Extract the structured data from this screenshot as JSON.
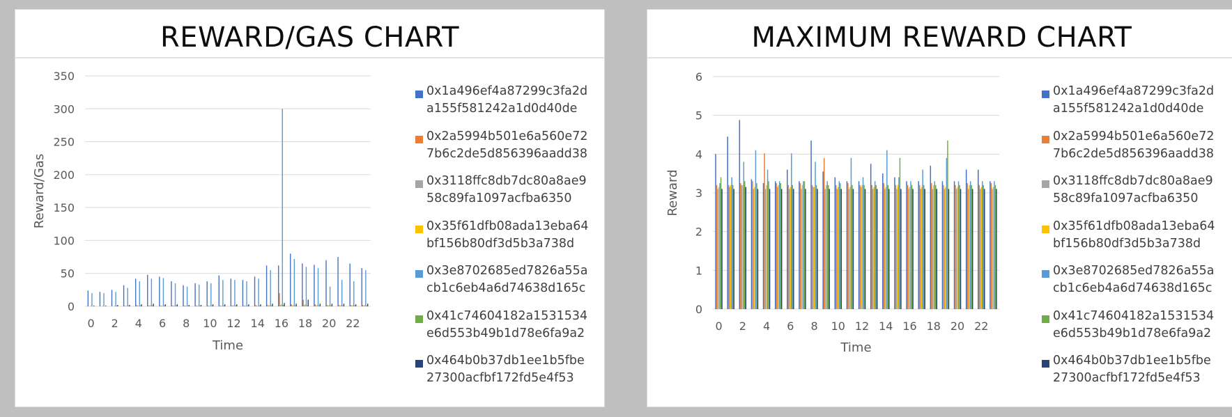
{
  "charts": [
    {
      "panel_title": "REWARD/GAS CHART",
      "xlabel": "Time",
      "ylabel": "Reward/Gas"
    },
    {
      "panel_title": "MAXIMUM REWARD CHART",
      "xlabel": "Time",
      "ylabel": "Reward"
    }
  ],
  "legend": [
    {
      "name": "0x1a496ef4a87299c3fa2da155f581242a1d0d40de",
      "color": "#4472c4"
    },
    {
      "name": "0x2a5994b501e6a560e727b6c2de5d856396aadd38",
      "color": "#ed7d31"
    },
    {
      "name": "0x3118ffc8db7dc80a8ae958c89fa1097acfba6350",
      "color": "#a5a5a5"
    },
    {
      "name": "0x35f61dfb08ada13eba64bf156b80df3d5b3a738d",
      "color": "#ffc000"
    },
    {
      "name": "0x3e8702685ed7826a55acb1c6eb4a6d74638d165c",
      "color": "#5b9bd5"
    },
    {
      "name": "0x41c74604182a1531534e6d553b49b1d78e6fa9a2",
      "color": "#70ad47"
    },
    {
      "name": "0x464b0b37db1ee1b5fbe27300acfbf172fd5e4f53",
      "color": "#264478"
    }
  ],
  "chart_data": [
    {
      "type": "bar",
      "title": "REWARD/GAS CHART",
      "xlabel": "Time",
      "ylabel": "Reward/Gas",
      "ylim": [
        0,
        350
      ],
      "yticks": [
        0,
        50,
        100,
        150,
        200,
        250,
        300,
        350
      ],
      "xticks": [
        0,
        2,
        4,
        6,
        8,
        10,
        12,
        14,
        16,
        18,
        20,
        22
      ],
      "x_range": [
        0,
        23
      ],
      "grid": true,
      "legend_position": "right",
      "series": [
        {
          "name": "0x1a496ef4a87299c3fa2da155f581242a1d0d40de",
          "values": [
            24,
            22,
            25,
            32,
            42,
            48,
            45,
            38,
            32,
            35,
            38,
            47,
            42,
            40,
            45,
            62,
            62,
            80,
            65,
            63,
            70,
            75,
            65,
            58
          ]
        },
        {
          "name": "0x2a5994b501e6a560e727b6c2de5d856396aadd38",
          "values": [
            0,
            0,
            0,
            1,
            2,
            1,
            1,
            1,
            1,
            1,
            1,
            1,
            1,
            1,
            2,
            2,
            20,
            3,
            10,
            3,
            2,
            2,
            2,
            2
          ]
        },
        {
          "name": "0x3118ffc8db7dc80a8ae958c89fa1097acfba6350",
          "values": [
            0,
            0,
            0,
            0,
            1,
            1,
            1,
            1,
            1,
            1,
            1,
            1,
            1,
            1,
            1,
            1,
            2,
            1,
            2,
            1,
            1,
            1,
            1,
            1
          ]
        },
        {
          "name": "0x35f61dfb08ada13eba64bf156b80df3d5b3a738d",
          "values": [
            1,
            1,
            1,
            1,
            1,
            2,
            1,
            1,
            1,
            1,
            1,
            1,
            2,
            1,
            1,
            2,
            3,
            2,
            3,
            2,
            2,
            2,
            2,
            2
          ]
        },
        {
          "name": "0x3e8702685ed7826a55acb1c6eb4a6d74638d165c",
          "values": [
            20,
            20,
            22,
            28,
            38,
            42,
            43,
            35,
            30,
            33,
            35,
            40,
            40,
            38,
            42,
            55,
            300,
            72,
            60,
            58,
            30,
            40,
            38,
            55
          ]
        },
        {
          "name": "0x41c74604182a1531534e6d553b49b1d78e6fa9a2",
          "values": [
            0,
            0,
            1,
            1,
            1,
            1,
            1,
            1,
            1,
            1,
            1,
            1,
            1,
            1,
            1,
            1,
            2,
            1,
            1,
            1,
            1,
            1,
            1,
            1
          ]
        },
        {
          "name": "0x464b0b37db1ee1b5fbe27300acfbf172fd5e4f53",
          "values": [
            1,
            1,
            2,
            2,
            3,
            4,
            3,
            3,
            2,
            2,
            3,
            3,
            3,
            3,
            3,
            4,
            5,
            4,
            10,
            4,
            4,
            4,
            3,
            4
          ]
        }
      ]
    },
    {
      "type": "bar",
      "title": "MAXIMUM REWARD CHART",
      "xlabel": "Time",
      "ylabel": "Reward",
      "ylim": [
        0,
        6
      ],
      "yticks": [
        0,
        1,
        2,
        3,
        4,
        5,
        6
      ],
      "xticks": [
        0,
        2,
        4,
        6,
        8,
        10,
        12,
        14,
        16,
        18,
        20,
        22
      ],
      "x_range": [
        0,
        23
      ],
      "grid": true,
      "legend_position": "right",
      "series": [
        {
          "name": "0x1a496ef4a87299c3fa2da155f581242a1d0d40de",
          "values": [
            4.0,
            4.45,
            4.88,
            3.35,
            3.25,
            3.3,
            3.6,
            3.3,
            4.35,
            3.55,
            3.4,
            3.3,
            3.3,
            3.75,
            3.5,
            3.4,
            3.3,
            3.3,
            3.7,
            3.3,
            3.3,
            3.6,
            3.6,
            3.3
          ]
        },
        {
          "name": "0x2a5994b501e6a560e727b6c2de5d856396aadd38",
          "values": [
            3.2,
            3.2,
            3.25,
            3.3,
            4.02,
            3.25,
            3.2,
            3.25,
            3.2,
            3.9,
            3.2,
            3.25,
            3.2,
            3.2,
            3.25,
            3.2,
            3.2,
            3.2,
            3.25,
            3.2,
            3.2,
            3.25,
            3.2,
            3.25
          ]
        },
        {
          "name": "0x3118ffc8db7dc80a8ae958c89fa1097acfba6350",
          "values": [
            3.1,
            3.15,
            3.2,
            3.1,
            3.1,
            3.15,
            3.1,
            3.1,
            3.15,
            3.1,
            3.1,
            3.1,
            3.15,
            3.1,
            3.1,
            3.1,
            3.1,
            3.1,
            3.1,
            3.1,
            3.1,
            3.1,
            3.1,
            3.1
          ]
        },
        {
          "name": "0x35f61dfb08ada13eba64bf156b80df3d5b3a738d",
          "values": [
            3.15,
            3.2,
            3.2,
            3.15,
            3.2,
            3.2,
            3.15,
            3.2,
            3.15,
            3.2,
            3.15,
            3.15,
            3.2,
            3.15,
            3.15,
            3.2,
            3.15,
            3.15,
            3.2,
            3.15,
            3.15,
            3.2,
            3.15,
            3.15
          ]
        },
        {
          "name": "0x3e8702685ed7826a55acb1c6eb4a6d74638d165c",
          "values": [
            3.25,
            3.4,
            3.8,
            4.1,
            3.6,
            3.3,
            4.02,
            3.3,
            3.8,
            3.3,
            3.3,
            3.9,
            3.4,
            3.3,
            4.1,
            3.4,
            3.3,
            3.6,
            3.3,
            3.9,
            3.3,
            3.3,
            3.3,
            3.3
          ]
        },
        {
          "name": "0x41c74604182a1531534e6d553b49b1d78e6fa9a2",
          "values": [
            3.4,
            3.2,
            3.3,
            3.25,
            3.3,
            3.25,
            3.2,
            3.3,
            3.2,
            3.2,
            3.25,
            3.2,
            3.2,
            3.2,
            3.2,
            3.9,
            3.2,
            3.2,
            3.2,
            4.35,
            3.2,
            3.2,
            3.2,
            3.2
          ]
        },
        {
          "name": "0x464b0b37db1ee1b5fbe27300acfbf172fd5e4f53",
          "values": [
            3.1,
            3.1,
            3.15,
            3.1,
            3.1,
            3.1,
            3.1,
            3.1,
            3.1,
            3.1,
            3.1,
            3.1,
            3.1,
            3.1,
            3.1,
            3.1,
            3.1,
            3.1,
            3.1,
            3.1,
            3.1,
            3.1,
            3.1,
            3.1
          ]
        }
      ]
    }
  ]
}
